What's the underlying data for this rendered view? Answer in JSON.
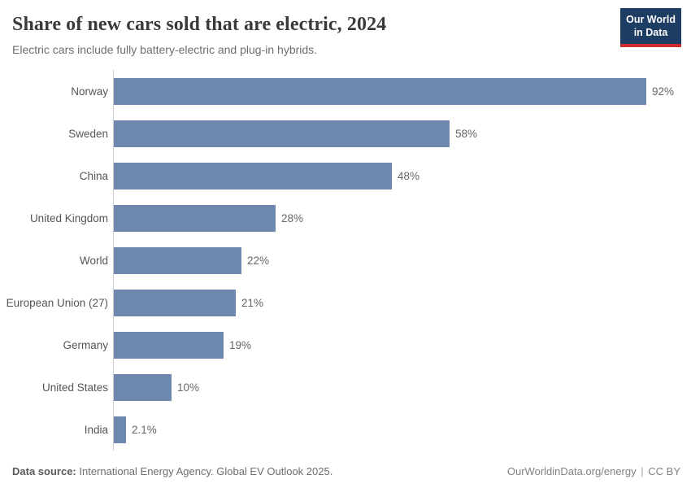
{
  "header": {
    "title": "Share of new cars sold that are electric, 2024",
    "subtitle": "Electric cars include fully battery-electric and plug-in hybrids.",
    "logo": {
      "line1": "Our World",
      "line2": "in Data"
    }
  },
  "chart_data": {
    "type": "bar",
    "orientation": "horizontal",
    "title": "Share of new cars sold that are electric, 2024",
    "xlabel": "",
    "ylabel": "",
    "xlim": [
      0,
      100
    ],
    "grid": false,
    "legend": "none",
    "unit": "%",
    "categories": [
      "Norway",
      "Sweden",
      "China",
      "United Kingdom",
      "World",
      "European Union (27)",
      "Germany",
      "United States",
      "India"
    ],
    "values": [
      92,
      58,
      48,
      28,
      22,
      21,
      19,
      10,
      2.1
    ],
    "value_labels": [
      "92%",
      "58%",
      "48%",
      "28%",
      "22%",
      "21%",
      "19%",
      "10%",
      "2.1%"
    ]
  },
  "footer": {
    "source_label": "Data source:",
    "source_text": " International Energy Agency. Global EV Outlook 2025.",
    "link": "OurWorldinData.org/energy",
    "separator": "|",
    "license": "CC BY"
  },
  "colors": {
    "bar": "#6e87ae",
    "axis": "#cccccc",
    "logo_bg": "#1d3d63",
    "logo_accent": "#cf2d2d"
  }
}
